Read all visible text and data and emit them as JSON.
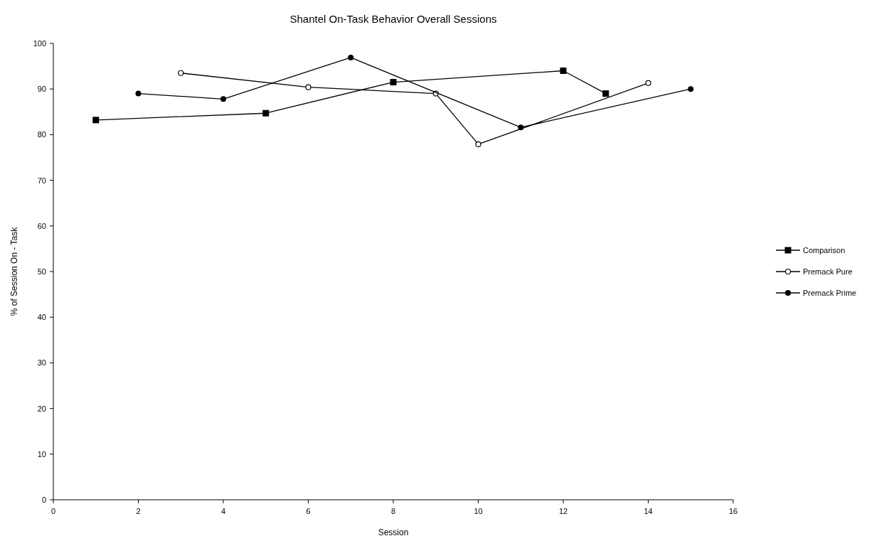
{
  "chart_data": {
    "type": "line",
    "title": "Shantel On-Task Behavior Overall Sessions",
    "xlabel": "Session",
    "ylabel": "% of Session On - Task",
    "xlim": [
      0,
      16
    ],
    "xticks": [
      0,
      2,
      4,
      6,
      8,
      10,
      12,
      14,
      16
    ],
    "ylim": [
      0,
      100
    ],
    "yticks": [
      0,
      10,
      20,
      30,
      40,
      50,
      60,
      70,
      80,
      90,
      100
    ],
    "grid": false,
    "legend": "right",
    "series": [
      {
        "name": "Comparison",
        "color": "#000000",
        "marker": "square",
        "x": [
          1,
          5,
          8,
          12,
          13
        ],
        "values": [
          83.2,
          84.7,
          91.5,
          94,
          89
        ]
      },
      {
        "name": "Premack Pure",
        "color": "#000000",
        "marker": "open-circle",
        "x": [
          3,
          6,
          9,
          10,
          14
        ],
        "values": [
          93.5,
          90.4,
          89,
          77.9,
          91.3
        ]
      },
      {
        "name": "Premack Prime",
        "color": "#000000",
        "marker": "circle",
        "x": [
          2,
          4,
          7,
          11,
          15
        ],
        "values": [
          89,
          87.8,
          96.9,
          81.6,
          90
        ]
      }
    ]
  }
}
